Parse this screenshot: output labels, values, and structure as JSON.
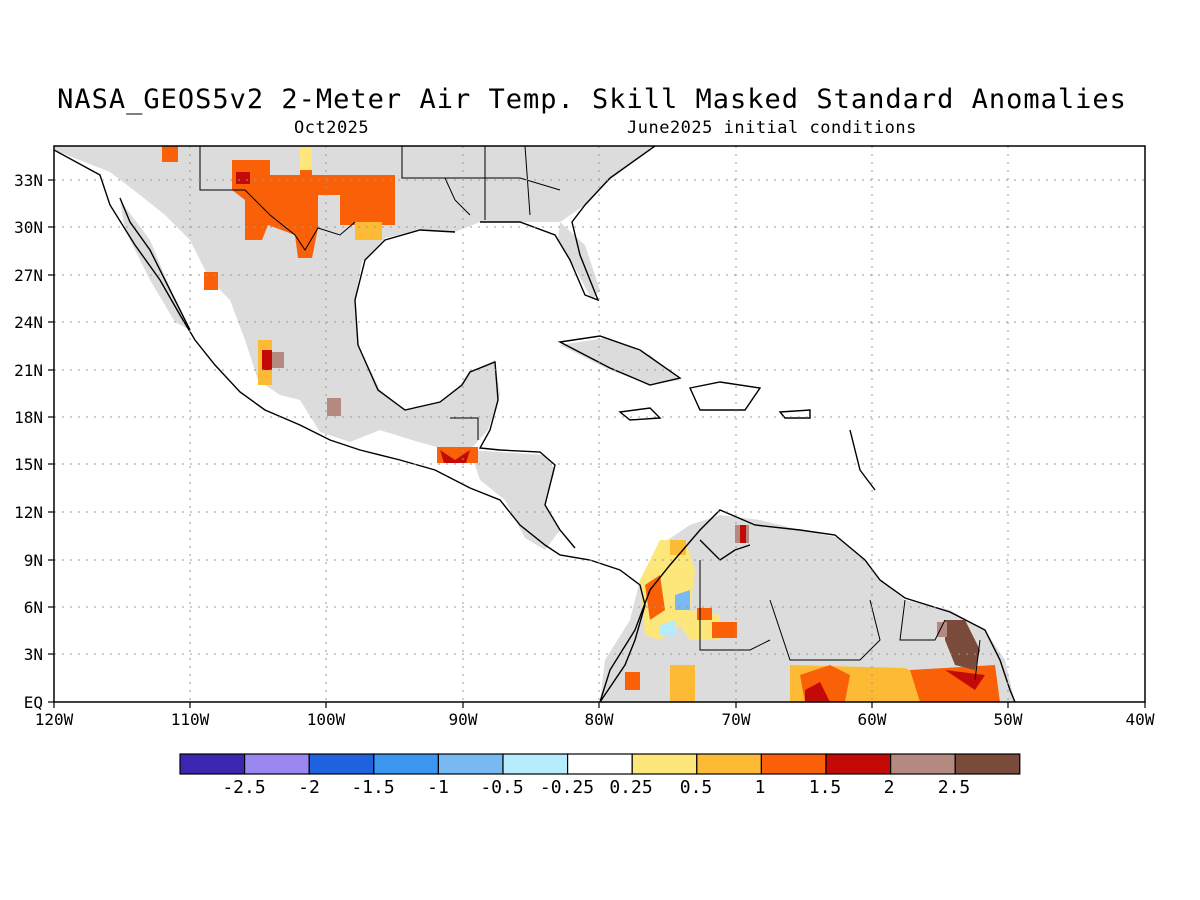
{
  "title": "NASA_GEOS5v2 2-Meter Air Temp. Skill Masked Standard Anomalies",
  "subtitle_left": "Oct2025",
  "subtitle_right": "June2025 initial conditions",
  "axes": {
    "x_ticks": [
      "120W",
      "110W",
      "100W",
      "90W",
      "80W",
      "70W",
      "60W",
      "50W",
      "40W"
    ],
    "y_ticks": [
      "EQ",
      "3N",
      "6N",
      "9N",
      "12N",
      "15N",
      "18N",
      "21N",
      "24N",
      "27N",
      "30N",
      "33N"
    ]
  },
  "colorbar": {
    "labels": [
      "-2.5",
      "-2",
      "-1.5",
      "-1",
      "-0.5",
      "-0.25",
      "0.25",
      "0.5",
      "1",
      "1.5",
      "2",
      "2.5"
    ],
    "colors": [
      "#3a26b0",
      "#9b87f0",
      "#1e62e0",
      "#3b96f0",
      "#78b9f4",
      "#b4ecfc",
      "#ffffff",
      "#fde67a",
      "#fcba35",
      "#fa6008",
      "#c30a06",
      "#b48a80",
      "#7a4a3a"
    ]
  },
  "colors": {
    "mask_gray": "#dcdcdc",
    "coast": "#000000",
    "grid": "#999999"
  }
}
